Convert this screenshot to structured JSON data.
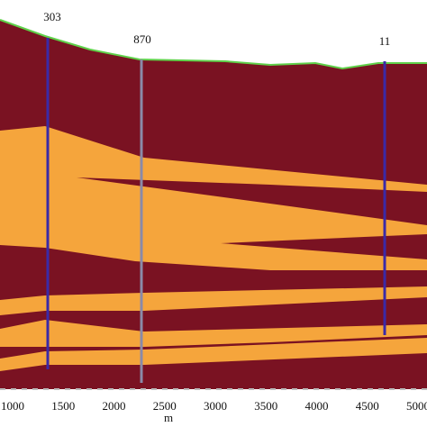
{
  "wells": [
    {
      "label": "303"
    },
    {
      "label": "870"
    },
    {
      "label": "11"
    }
  ],
  "axis": {
    "ticks": [
      "1000",
      "1500",
      "2000",
      "2500",
      "3000",
      "3500",
      "4000",
      "4500",
      "5000"
    ],
    "label": "m"
  }
}
